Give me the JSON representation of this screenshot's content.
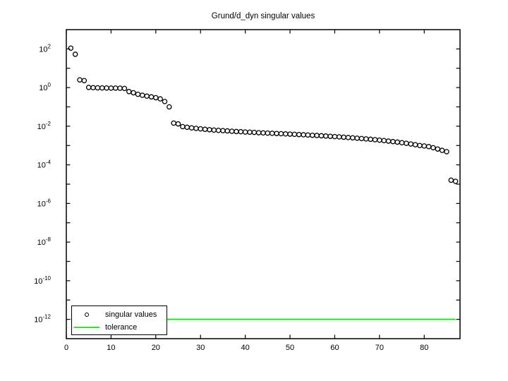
{
  "chart_data": {
    "type": "scatter",
    "title": "Grund/d_dyn singular values",
    "xlabel": "",
    "ylabel": "",
    "y_scale": "log",
    "xlim": [
      0,
      88
    ],
    "ylim_exponents": [
      -13,
      3
    ],
    "xticks": [
      0,
      10,
      20,
      30,
      40,
      50,
      60,
      70,
      80
    ],
    "ytick_exponents_labeled": [
      2,
      0,
      -2,
      -4,
      -6,
      -8,
      -10,
      -12
    ],
    "ytick_every_decade": true,
    "grid": false,
    "legend_position": "southwest",
    "legend": {
      "entries": [
        "singular values",
        "tolerance"
      ]
    },
    "series": [
      {
        "name": "singular values",
        "marker": "open-circle",
        "color": "#000000",
        "x_start": 1,
        "n_points": 87,
        "values": [
          110,
          53,
          2.5,
          2.3,
          1.02,
          0.99,
          0.97,
          0.96,
          0.95,
          0.94,
          0.94,
          0.93,
          0.9,
          0.62,
          0.54,
          0.45,
          0.4,
          0.36,
          0.33,
          0.3,
          0.26,
          0.19,
          0.1,
          0.0145,
          0.0132,
          0.0095,
          0.0088,
          0.0082,
          0.0077,
          0.0073,
          0.0069,
          0.0066,
          0.0063,
          0.0061,
          0.0059,
          0.0057,
          0.0055,
          0.0053,
          0.0052,
          0.005,
          0.0049,
          0.0048,
          0.0046,
          0.0045,
          0.0044,
          0.0043,
          0.0042,
          0.0041,
          0.004,
          0.0039,
          0.0038,
          0.0037,
          0.0036,
          0.0035,
          0.0034,
          0.0033,
          0.0032,
          0.0031,
          0.003,
          0.0029,
          0.0028,
          0.0027,
          0.0026,
          0.0025,
          0.0024,
          0.0023,
          0.0022,
          0.0021,
          0.002,
          0.0019,
          0.0018,
          0.0017,
          0.0016,
          0.0015,
          0.0014,
          0.0013,
          0.0012,
          0.0011,
          0.001,
          0.00095,
          0.00088,
          0.00077,
          0.00066,
          0.00056,
          0.00048,
          1.6e-05,
          1.4e-05
        ]
      },
      {
        "name": "tolerance",
        "type": "horizontal-line",
        "color": "#00ff00",
        "value": 1e-12,
        "x_span": [
          1,
          87
        ]
      }
    ]
  }
}
